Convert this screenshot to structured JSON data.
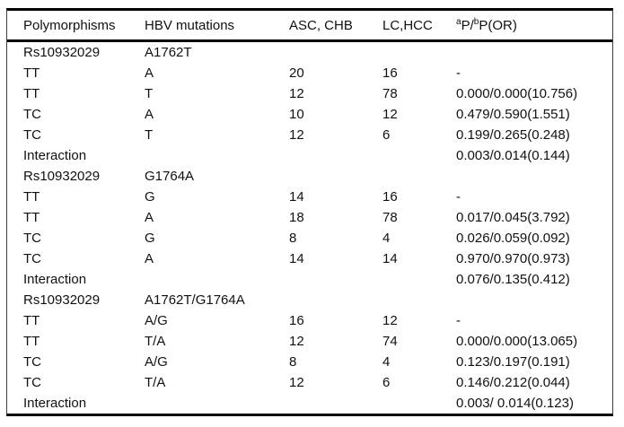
{
  "table": {
    "header": {
      "polymorphisms": "Polymorphisms",
      "hbv_mutations": "HBV mutations",
      "asc_chb": "ASC, CHB",
      "lc_hcc": "LC,HCC",
      "p_or": {
        "sup1": "a",
        "text1": "P/",
        "sup2": "b",
        "text2": "P(OR)"
      }
    },
    "rows": [
      [
        "Rs10932029",
        "A1762T",
        "",
        "",
        ""
      ],
      [
        "TT",
        "A",
        "20",
        "16",
        "-"
      ],
      [
        "TT",
        "T",
        "12",
        "78",
        "0.000/0.000(10.756)"
      ],
      [
        "TC",
        "A",
        "10",
        "12",
        "0.479/0.590(1.551)"
      ],
      [
        "TC",
        "T",
        "12",
        "6",
        "0.199/0.265(0.248)"
      ],
      [
        "Interaction",
        "",
        "",
        "",
        "0.003/0.014(0.144)"
      ],
      [
        "Rs10932029",
        "G1764A",
        "",
        "",
        ""
      ],
      [
        "TT",
        "G",
        "14",
        "16",
        "-"
      ],
      [
        "TT",
        "A",
        "18",
        "78",
        "0.017/0.045(3.792)"
      ],
      [
        "TC",
        "G",
        "8",
        "4",
        "0.026/0.059(0.092)"
      ],
      [
        "TC",
        "A",
        "14",
        "14",
        "0.970/0.970(0.973)"
      ],
      [
        "Interaction",
        "",
        "",
        "",
        "0.076/0.135(0.412)"
      ],
      [
        "Rs10932029",
        "A1762T/G1764A",
        "",
        "",
        ""
      ],
      [
        "TT",
        "A/G",
        "16",
        "12",
        "-"
      ],
      [
        "TT",
        "T/A",
        "12",
        "74",
        "0.000/0.000(13.065)"
      ],
      [
        "TC",
        "A/G",
        "8",
        "4",
        "0.123/0.197(0.191)"
      ],
      [
        "TC",
        "T/A",
        "12",
        "6",
        "0.146/0.212(0.044)"
      ],
      [
        "Interaction",
        "",
        "",
        "",
        "0.003/ 0.014(0.123)"
      ]
    ],
    "colors": {
      "text": "#111111",
      "rule_thick": "#000000",
      "rule_thin": "#3f3f3f",
      "background": "#ffffff"
    }
  }
}
